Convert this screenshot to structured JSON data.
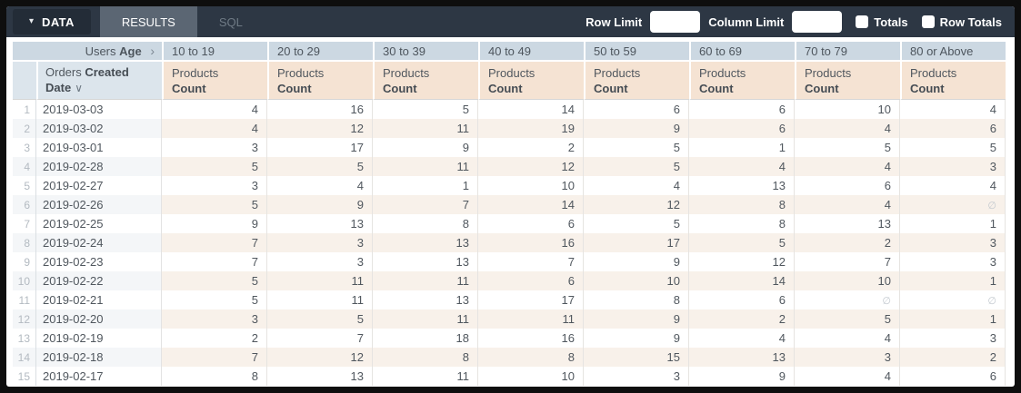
{
  "toolbar": {
    "data_label": "DATA",
    "tabs": [
      {
        "label": "RESULTS",
        "active": true
      },
      {
        "label": "SQL",
        "active": false
      }
    ],
    "row_limit_label": "Row Limit",
    "row_limit_value": "",
    "column_limit_label": "Column Limit",
    "column_limit_value": "",
    "totals_label": "Totals",
    "totals_checked": false,
    "row_totals_label": "Row Totals",
    "row_totals_checked": false
  },
  "icons": {
    "caret_down": "▾",
    "chevron_right": "›",
    "sort_desc": "∨",
    "null_symbol": "∅"
  },
  "colors": {
    "topbar_bg": "#2d3744",
    "active_tab_bg": "#5b6673",
    "header_blue": "#ccd8e2",
    "header_blue_light": "#dce5ec",
    "header_peach": "#f5e3d3",
    "stripe_peach": "#f8f1ea",
    "stripe_gray": "#f4f6f8"
  },
  "table": {
    "pivot": {
      "prefix": "Users",
      "field": "Age"
    },
    "row_dim": {
      "prefix": "Orders",
      "field": "Created Date"
    },
    "measure": {
      "prefix": "Products",
      "name": "Count"
    },
    "age_buckets": [
      "10 to 19",
      "20 to 29",
      "30 to 39",
      "40 to 49",
      "50 to 59",
      "60 to 69",
      "70 to 79",
      "80 or Above"
    ],
    "rows": [
      {
        "num": 1,
        "date": "2019-03-03",
        "values": [
          4,
          16,
          5,
          14,
          6,
          6,
          10,
          4
        ]
      },
      {
        "num": 2,
        "date": "2019-03-02",
        "values": [
          4,
          12,
          11,
          19,
          9,
          6,
          4,
          6
        ]
      },
      {
        "num": 3,
        "date": "2019-03-01",
        "values": [
          3,
          17,
          9,
          2,
          5,
          1,
          5,
          5
        ]
      },
      {
        "num": 4,
        "date": "2019-02-28",
        "values": [
          5,
          5,
          11,
          12,
          5,
          4,
          4,
          3
        ]
      },
      {
        "num": 5,
        "date": "2019-02-27",
        "values": [
          3,
          4,
          1,
          10,
          4,
          13,
          6,
          4
        ]
      },
      {
        "num": 6,
        "date": "2019-02-26",
        "values": [
          5,
          9,
          7,
          14,
          12,
          8,
          4,
          null
        ]
      },
      {
        "num": 7,
        "date": "2019-02-25",
        "values": [
          9,
          13,
          8,
          6,
          5,
          8,
          13,
          1
        ]
      },
      {
        "num": 8,
        "date": "2019-02-24",
        "values": [
          7,
          3,
          13,
          16,
          17,
          5,
          2,
          3
        ]
      },
      {
        "num": 9,
        "date": "2019-02-23",
        "values": [
          7,
          3,
          13,
          7,
          9,
          12,
          7,
          3
        ]
      },
      {
        "num": 10,
        "date": "2019-02-22",
        "values": [
          5,
          11,
          11,
          6,
          10,
          14,
          10,
          1
        ]
      },
      {
        "num": 11,
        "date": "2019-02-21",
        "values": [
          5,
          11,
          13,
          17,
          8,
          6,
          null,
          null
        ]
      },
      {
        "num": 12,
        "date": "2019-02-20",
        "values": [
          3,
          5,
          11,
          11,
          9,
          2,
          5,
          1
        ]
      },
      {
        "num": 13,
        "date": "2019-02-19",
        "values": [
          2,
          7,
          18,
          16,
          9,
          4,
          4,
          3
        ]
      },
      {
        "num": 14,
        "date": "2019-02-18",
        "values": [
          7,
          12,
          8,
          8,
          15,
          13,
          3,
          2
        ]
      },
      {
        "num": 15,
        "date": "2019-02-17",
        "values": [
          8,
          13,
          11,
          10,
          3,
          9,
          4,
          6
        ]
      }
    ]
  }
}
